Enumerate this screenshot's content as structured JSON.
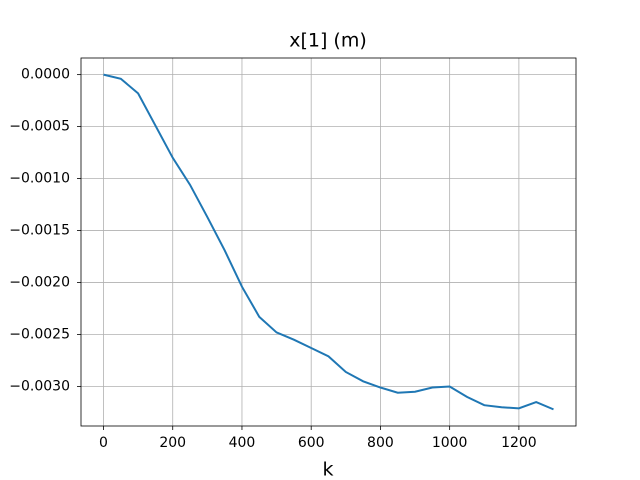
{
  "chart_data": {
    "type": "line",
    "title": "x[1] (m)",
    "x_label": "k",
    "x": [
      0,
      50,
      100,
      150,
      200,
      250,
      300,
      350,
      400,
      450,
      500,
      550,
      600,
      650,
      700,
      750,
      800,
      850,
      900,
      950,
      1000,
      1050,
      1100,
      1150,
      1200,
      1250,
      1300
    ],
    "series": [
      {
        "color": "#1f77b4",
        "values": [
          0,
          -4e-05,
          -0.00018,
          -0.00049,
          -0.0008,
          -0.00106,
          -0.00137,
          -0.00169,
          -0.00204,
          -0.00233,
          -0.00248,
          -0.00255,
          -0.00263,
          -0.00271,
          -0.00286,
          -0.00295,
          -0.00301,
          -0.00306,
          -0.00305,
          -0.00301,
          -0.003,
          -0.0031,
          -0.00318,
          -0.0032,
          -0.00321,
          -0.00315,
          -0.00322
        ]
      }
    ],
    "xlim": [
      -65,
      1365
    ],
    "ylim": [
      -0.00338,
      0.00016
    ],
    "xticks": [
      0,
      200,
      400,
      600,
      800,
      1000,
      1200
    ],
    "yticks": [
      {
        "value": 0,
        "label": "0.0000"
      },
      {
        "value": -0.0005,
        "label": "−0.0005"
      },
      {
        "value": -0.001,
        "label": "−0.0010"
      },
      {
        "value": -0.0015,
        "label": "−0.0015"
      },
      {
        "value": -0.002,
        "label": "−0.0020"
      },
      {
        "value": -0.0025,
        "label": "−0.0025"
      },
      {
        "value": -0.003,
        "label": "−0.0030"
      }
    ],
    "grid": true
  }
}
